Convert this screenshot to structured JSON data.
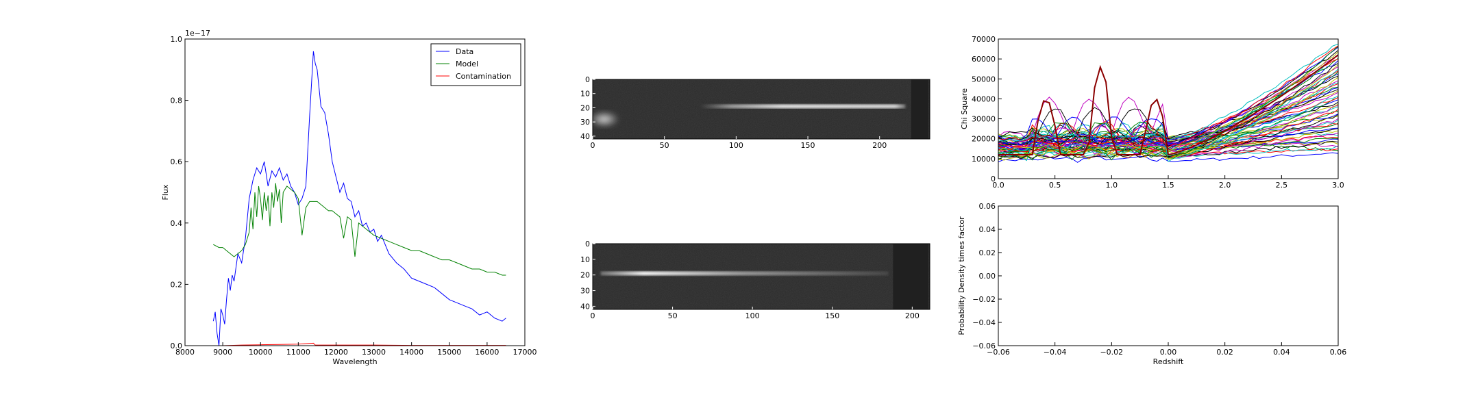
{
  "chart_data": [
    {
      "type": "line",
      "xlabel": "Wavelength",
      "ylabel": "Flux",
      "offset_text": "1e−17",
      "xlim": [
        8000,
        17000
      ],
      "ylim": [
        0.0,
        1.0
      ],
      "xticks": [
        8000,
        9000,
        10000,
        11000,
        12000,
        13000,
        14000,
        15000,
        16000,
        17000
      ],
      "yticks": [
        0.0,
        0.2,
        0.4,
        0.6,
        0.8,
        1.0
      ],
      "xtick_labels": [
        "8000",
        "9000",
        "10000",
        "11000",
        "12000",
        "13000",
        "14000",
        "15000",
        "16000",
        "17000"
      ],
      "ytick_labels": [
        "0.0",
        "0.2",
        "0.4",
        "0.6",
        "0.8",
        "1.0"
      ],
      "legend": "top-right",
      "series": [
        {
          "name": "Data",
          "color": "#0000ff",
          "x": [
            8750,
            8800,
            8850,
            8900,
            8950,
            9000,
            9050,
            9100,
            9150,
            9200,
            9250,
            9300,
            9400,
            9500,
            9600,
            9700,
            9800,
            9900,
            10000,
            10100,
            10200,
            10300,
            10400,
            10500,
            10600,
            10700,
            10800,
            10900,
            11000,
            11100,
            11200,
            11300,
            11400,
            11450,
            11500,
            11600,
            11700,
            11800,
            11900,
            12000,
            12100,
            12200,
            12300,
            12400,
            12500,
            12600,
            12700,
            12800,
            12900,
            13000,
            13100,
            13200,
            13400,
            13600,
            13800,
            14000,
            14200,
            14400,
            14600,
            14800,
            15000,
            15200,
            15400,
            15600,
            15800,
            16000,
            16200,
            16400,
            16500
          ],
          "y": [
            0.08,
            0.11,
            0.04,
            0.0,
            0.12,
            0.1,
            0.07,
            0.15,
            0.22,
            0.18,
            0.23,
            0.21,
            0.3,
            0.27,
            0.35,
            0.48,
            0.54,
            0.58,
            0.56,
            0.6,
            0.52,
            0.57,
            0.55,
            0.58,
            0.54,
            0.56,
            0.52,
            0.5,
            0.46,
            0.48,
            0.52,
            0.75,
            0.96,
            0.92,
            0.9,
            0.78,
            0.76,
            0.69,
            0.6,
            0.55,
            0.5,
            0.53,
            0.48,
            0.47,
            0.42,
            0.44,
            0.39,
            0.4,
            0.37,
            0.38,
            0.34,
            0.36,
            0.3,
            0.27,
            0.25,
            0.22,
            0.21,
            0.2,
            0.19,
            0.17,
            0.15,
            0.14,
            0.13,
            0.12,
            0.1,
            0.11,
            0.09,
            0.08,
            0.09
          ]
        },
        {
          "name": "Model",
          "color": "#008000",
          "x": [
            8750,
            8900,
            9000,
            9100,
            9200,
            9300,
            9400,
            9500,
            9600,
            9700,
            9750,
            9800,
            9850,
            9900,
            9950,
            10000,
            10050,
            10100,
            10150,
            10200,
            10250,
            10300,
            10350,
            10400,
            10450,
            10500,
            10550,
            10600,
            10700,
            10800,
            10900,
            11000,
            11100,
            11200,
            11300,
            11400,
            11500,
            11600,
            11700,
            11800,
            11900,
            12000,
            12100,
            12200,
            12300,
            12400,
            12500,
            12600,
            12800,
            13000,
            13200,
            13400,
            13600,
            13800,
            14000,
            14200,
            14400,
            14600,
            14800,
            15000,
            15200,
            15400,
            15600,
            15800,
            16000,
            16200,
            16400,
            16500
          ],
          "y": [
            0.33,
            0.32,
            0.32,
            0.31,
            0.3,
            0.29,
            0.3,
            0.31,
            0.33,
            0.37,
            0.45,
            0.38,
            0.5,
            0.42,
            0.52,
            0.48,
            0.41,
            0.5,
            0.44,
            0.49,
            0.39,
            0.5,
            0.45,
            0.53,
            0.47,
            0.51,
            0.4,
            0.5,
            0.52,
            0.51,
            0.5,
            0.48,
            0.36,
            0.45,
            0.47,
            0.47,
            0.47,
            0.46,
            0.45,
            0.44,
            0.44,
            0.43,
            0.42,
            0.35,
            0.42,
            0.41,
            0.29,
            0.4,
            0.38,
            0.36,
            0.35,
            0.34,
            0.33,
            0.32,
            0.31,
            0.31,
            0.3,
            0.29,
            0.28,
            0.28,
            0.27,
            0.26,
            0.25,
            0.25,
            0.24,
            0.24,
            0.23,
            0.23
          ]
        },
        {
          "name": "Contamination",
          "color": "#ff0000",
          "x": [
            8750,
            9000,
            9500,
            10000,
            10500,
            11000,
            11400,
            11450,
            12000,
            13000,
            14000,
            15000,
            16000,
            16500
          ],
          "y": [
            0.0,
            0.0,
            0.002,
            0.003,
            0.004,
            0.005,
            0.008,
            0.002,
            0.002,
            0.002,
            0.001,
            0.001,
            0.001,
            0.001
          ]
        }
      ]
    },
    {
      "type": "heatmap",
      "xticks": [
        0,
        50,
        100,
        150,
        200
      ],
      "yticks": [
        0,
        10,
        20,
        30,
        40
      ],
      "xtick_labels": [
        "0",
        "50",
        "100",
        "150",
        "200"
      ],
      "ytick_labels": [
        "0",
        "10",
        "20",
        "30",
        "40"
      ],
      "xlim": [
        0,
        235
      ],
      "ylim": [
        0,
        42
      ],
      "trace_row": 19,
      "trace_extent": [
        75,
        218
      ],
      "bright_source": [
        0,
        15,
        30
      ]
    },
    {
      "type": "heatmap",
      "xticks": [
        0,
        50,
        100,
        150,
        200
      ],
      "yticks": [
        0,
        10,
        20,
        30,
        40
      ],
      "xtick_labels": [
        "0",
        "50",
        "100",
        "150",
        "200"
      ],
      "ytick_labels": [
        "0",
        "10",
        "20",
        "30",
        "40"
      ],
      "xlim": [
        0,
        211
      ],
      "ylim": [
        0,
        42
      ],
      "trace_row": 19,
      "trace_extent": [
        5,
        185
      ],
      "trace_peak_x": 35
    },
    {
      "type": "line",
      "ylabel": "Chi Square",
      "xlim": [
        0.0,
        3.0
      ],
      "ylim": [
        0,
        70000
      ],
      "xticks": [
        0.0,
        0.5,
        1.0,
        1.5,
        2.0,
        2.5,
        3.0
      ],
      "yticks": [
        0,
        10000,
        20000,
        30000,
        40000,
        50000,
        60000,
        70000
      ],
      "xtick_labels": [
        "0.0",
        "0.5",
        "1.0",
        "1.5",
        "2.0",
        "2.5",
        "3.0"
      ],
      "ytick_labels": [
        "0",
        "10000",
        "20000",
        "30000",
        "40000",
        "50000",
        "60000",
        "70000"
      ],
      "n_series": 60,
      "series_end_range": [
        13000,
        68000
      ],
      "palette": [
        "#0000ff",
        "#008000",
        "#ff0000",
        "#00bfbf",
        "#bf00bf",
        "#bfbf00",
        "#000000"
      ]
    },
    {
      "type": "line",
      "xlabel": "Redshift",
      "ylabel": "Probability Density times factor",
      "xlim": [
        -0.06,
        0.06
      ],
      "ylim": [
        -0.06,
        0.06
      ],
      "xticks": [
        -0.06,
        -0.04,
        -0.02,
        0.0,
        0.02,
        0.04,
        0.06
      ],
      "yticks": [
        -0.06,
        -0.04,
        -0.02,
        0.0,
        0.02,
        0.04,
        0.06
      ],
      "xtick_labels": [
        "−0.06",
        "−0.04",
        "−0.02",
        "0.00",
        "0.02",
        "0.04",
        "0.06"
      ],
      "ytick_labels": [
        "−0.06",
        "−0.04",
        "−0.02",
        "0.00",
        "0.02",
        "0.04",
        "0.06"
      ],
      "series": []
    }
  ]
}
